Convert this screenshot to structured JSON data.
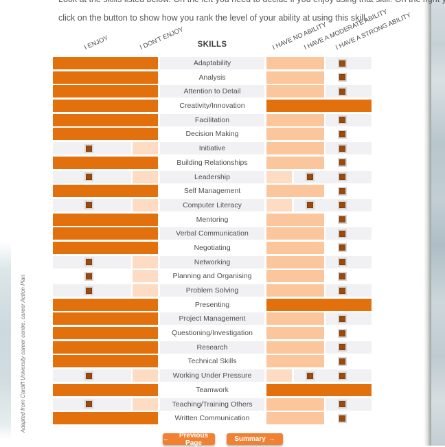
{
  "intro": {
    "line1": "Look at the skills listed below. On the left you need to decide if you enjoy using that skill. On the right you need to",
    "line2": "click on the button to show how you rank the level of your ability at using this skill."
  },
  "table": {
    "headers": {
      "enjoy": "I ENJOY",
      "dont_enjoy": "I DON'T ENJOY",
      "skills": "SKILLS",
      "no_ability": "I HAVE NO ABILITY",
      "moderate_ability": "I HAVE A MODERATE ABILITY",
      "strong_ability": "I HAVE A STRONG ABILITY"
    },
    "skills": [
      {
        "name": "Adaptability",
        "enjoy": "enjoy",
        "ability": "moderate"
      },
      {
        "name": "Analysis",
        "enjoy": "enjoy",
        "ability": "moderate"
      },
      {
        "name": "Attention to Detail",
        "enjoy": "enjoy",
        "ability": "moderate"
      },
      {
        "name": "Creativity/Innovation",
        "enjoy": "enjoy",
        "ability": "strong"
      },
      {
        "name": "Facilitation",
        "enjoy": "enjoy",
        "ability": "moderate"
      },
      {
        "name": "Decision Making",
        "enjoy": "enjoy",
        "ability": "moderate"
      },
      {
        "name": "Initiative",
        "enjoy": "dont",
        "ability": "moderate"
      },
      {
        "name": "Building Relationships",
        "enjoy": "enjoy",
        "ability": "moderate"
      },
      {
        "name": "Leadership",
        "enjoy": "dont",
        "ability": "none"
      },
      {
        "name": "Self Management",
        "enjoy": "enjoy",
        "ability": "moderate"
      },
      {
        "name": "Computer Literacy",
        "enjoy": "dont",
        "ability": "none"
      },
      {
        "name": "Mentoring",
        "enjoy": "enjoy",
        "ability": "moderate"
      },
      {
        "name": "Verbal Communication",
        "enjoy": "enjoy",
        "ability": "moderate"
      },
      {
        "name": "Negotiating",
        "enjoy": "enjoy",
        "ability": "moderate"
      },
      {
        "name": "Networking",
        "enjoy": "dont",
        "ability": "moderate"
      },
      {
        "name": "Planning and Organising",
        "enjoy": "dont",
        "ability": "moderate"
      },
      {
        "name": "Problem Solving",
        "enjoy": "dont",
        "ability": "moderate"
      },
      {
        "name": "Presenting",
        "enjoy": "enjoy",
        "ability": "strong"
      },
      {
        "name": "Project Management",
        "enjoy": "enjoy",
        "ability": "moderate"
      },
      {
        "name": "Questioning/Investigation",
        "enjoy": "enjoy",
        "ability": "moderate"
      },
      {
        "name": "Research",
        "enjoy": "enjoy",
        "ability": "moderate"
      },
      {
        "name": "Technical Skills",
        "enjoy": "enjoy",
        "ability": "moderate"
      },
      {
        "name": "Working Under Pressure",
        "enjoy": "dont",
        "ability": "none"
      },
      {
        "name": "Teamwork",
        "enjoy": "enjoy",
        "ability": "strong"
      },
      {
        "name": "Teaching/Training Others",
        "enjoy": "dont",
        "ability": "moderate"
      },
      {
        "name": "Written Communication",
        "enjoy": "enjoy",
        "ability": "moderate"
      }
    ]
  },
  "footer": {
    "previous": {
      "icon": "←",
      "label": "Previous Page"
    },
    "summary": {
      "label": "Summary",
      "icon": "→"
    }
  },
  "attribution": "Adapted from Cardiff University career centre, career Action Plan",
  "colors": {
    "orange": "#e2710d",
    "medium_peach": "#fbc69b",
    "light_peach": "#fddcc3",
    "brown_button": "#9c4a0b",
    "band_gray": "#f1f1f3",
    "nav_button": "#f08133"
  }
}
